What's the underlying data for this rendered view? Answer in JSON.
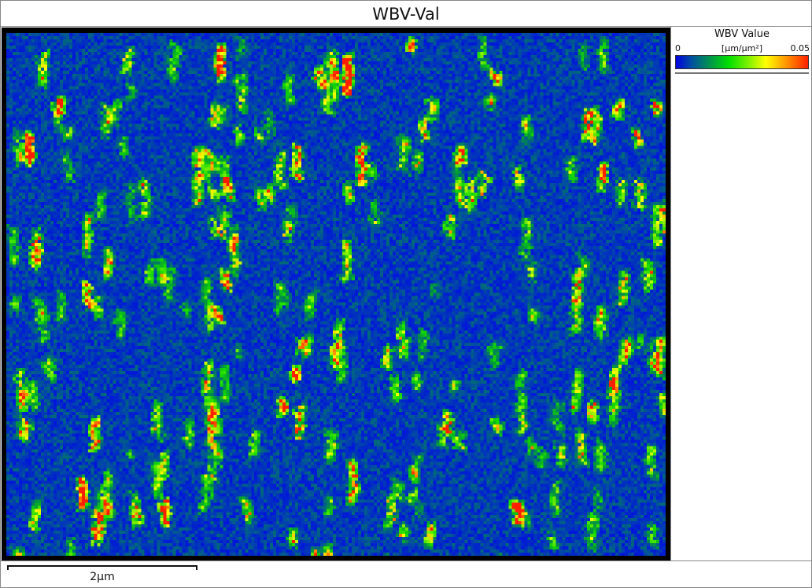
{
  "title": "WBV-Val",
  "legend": {
    "title": "WBV Value",
    "min": "0",
    "max": "0.05",
    "unit": "[μm/μm²]",
    "colormap": [
      "#0000e0",
      "#00a040",
      "#00e000",
      "#ffff00",
      "#ffa000",
      "#ff2000"
    ]
  },
  "scale_bar": {
    "label": "2μm"
  }
}
